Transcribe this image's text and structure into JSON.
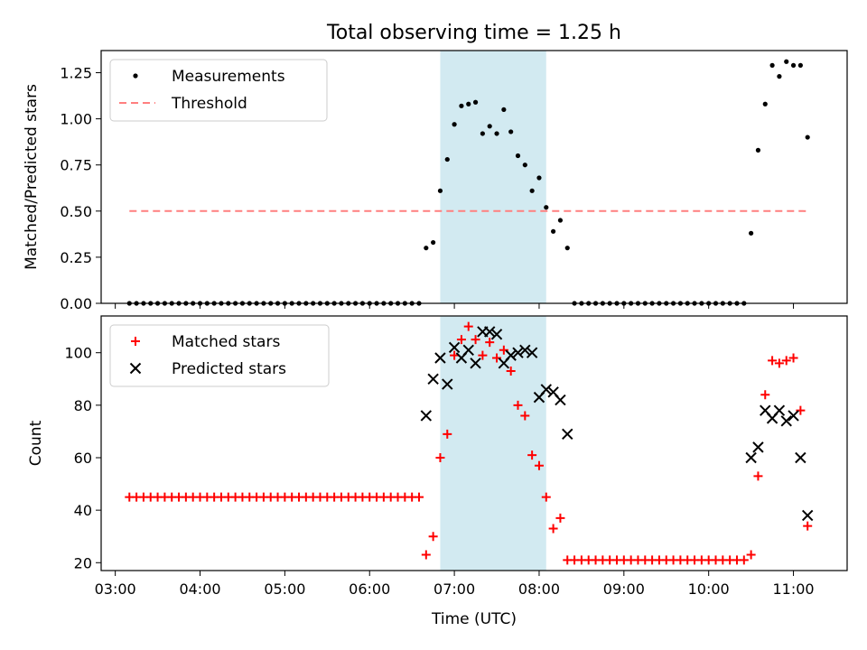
{
  "title": "Total observing time = 1.25 h",
  "xlabel": "Time (UTC)",
  "shaded_span": {
    "start": "06:50",
    "end": "08:05",
    "color": "#add8e6"
  },
  "x_ticks": [
    "03:00",
    "04:00",
    "05:00",
    "06:00",
    "07:00",
    "08:00",
    "09:00",
    "10:00",
    "11:00"
  ],
  "chart_data": [
    {
      "type": "scatter",
      "ylabel": "Matched/Predicted stars",
      "ylim": [
        0,
        1.37
      ],
      "y_ticks": [
        "0.00",
        "0.25",
        "0.50",
        "0.75",
        "1.00",
        "1.25"
      ],
      "legend": {
        "placement": "upper-left",
        "entries": [
          "Measurements",
          "Threshold"
        ]
      },
      "series": [
        {
          "name": "Measurements",
          "marker": "dot",
          "color": "#000000",
          "points": [
            [
              "03:10",
              0
            ],
            [
              "03:15",
              0
            ],
            [
              "03:20",
              0
            ],
            [
              "03:25",
              0
            ],
            [
              "03:30",
              0
            ],
            [
              "03:35",
              0
            ],
            [
              "03:40",
              0
            ],
            [
              "03:45",
              0
            ],
            [
              "03:50",
              0
            ],
            [
              "03:55",
              0
            ],
            [
              "04:00",
              0
            ],
            [
              "04:05",
              0
            ],
            [
              "04:10",
              0
            ],
            [
              "04:15",
              0
            ],
            [
              "04:20",
              0
            ],
            [
              "04:25",
              0
            ],
            [
              "04:30",
              0
            ],
            [
              "04:35",
              0
            ],
            [
              "04:40",
              0
            ],
            [
              "04:45",
              0
            ],
            [
              "04:50",
              0
            ],
            [
              "04:55",
              0
            ],
            [
              "05:00",
              0
            ],
            [
              "05:05",
              0
            ],
            [
              "05:10",
              0
            ],
            [
              "05:15",
              0
            ],
            [
              "05:20",
              0
            ],
            [
              "05:25",
              0
            ],
            [
              "05:30",
              0
            ],
            [
              "05:35",
              0
            ],
            [
              "05:40",
              0
            ],
            [
              "05:45",
              0
            ],
            [
              "05:50",
              0
            ],
            [
              "05:55",
              0
            ],
            [
              "06:00",
              0
            ],
            [
              "06:05",
              0
            ],
            [
              "06:10",
              0
            ],
            [
              "06:15",
              0
            ],
            [
              "06:20",
              0
            ],
            [
              "06:25",
              0
            ],
            [
              "06:30",
              0
            ],
            [
              "06:35",
              0
            ],
            [
              "06:40",
              0.3
            ],
            [
              "06:45",
              0.33
            ],
            [
              "06:50",
              0.61
            ],
            [
              "06:55",
              0.78
            ],
            [
              "07:00",
              0.97
            ],
            [
              "07:05",
              1.07
            ],
            [
              "07:10",
              1.08
            ],
            [
              "07:15",
              1.09
            ],
            [
              "07:20",
              0.92
            ],
            [
              "07:25",
              0.96
            ],
            [
              "07:30",
              0.92
            ],
            [
              "07:35",
              1.05
            ],
            [
              "07:40",
              0.93
            ],
            [
              "07:45",
              0.8
            ],
            [
              "07:50",
              0.75
            ],
            [
              "07:55",
              0.61
            ],
            [
              "08:00",
              0.68
            ],
            [
              "08:05",
              0.52
            ],
            [
              "08:10",
              0.39
            ],
            [
              "08:15",
              0.45
            ],
            [
              "08:20",
              0.3
            ],
            [
              "08:25",
              0
            ],
            [
              "08:30",
              0
            ],
            [
              "08:35",
              0
            ],
            [
              "08:40",
              0
            ],
            [
              "08:45",
              0
            ],
            [
              "08:50",
              0
            ],
            [
              "08:55",
              0
            ],
            [
              "09:00",
              0
            ],
            [
              "09:05",
              0
            ],
            [
              "09:10",
              0
            ],
            [
              "09:15",
              0
            ],
            [
              "09:20",
              0
            ],
            [
              "09:25",
              0
            ],
            [
              "09:30",
              0
            ],
            [
              "09:35",
              0
            ],
            [
              "09:40",
              0
            ],
            [
              "09:45",
              0
            ],
            [
              "09:50",
              0
            ],
            [
              "09:55",
              0
            ],
            [
              "10:00",
              0
            ],
            [
              "10:05",
              0
            ],
            [
              "10:10",
              0
            ],
            [
              "10:15",
              0
            ],
            [
              "10:20",
              0
            ],
            [
              "10:25",
              0
            ],
            [
              "10:30",
              0.38
            ],
            [
              "10:35",
              0.83
            ],
            [
              "10:40",
              1.08
            ],
            [
              "10:45",
              1.29
            ],
            [
              "10:50",
              1.23
            ],
            [
              "10:55",
              1.31
            ],
            [
              "11:00",
              1.29
            ],
            [
              "11:05",
              1.29
            ],
            [
              "11:10",
              0.9
            ]
          ]
        },
        {
          "name": "Threshold",
          "kind": "line",
          "style": "dashed",
          "color": "#ff7f7f",
          "y": 0.5,
          "x_range": [
            "03:10",
            "11:10"
          ]
        }
      ]
    },
    {
      "type": "scatter",
      "ylabel": "Count",
      "ylim": [
        17,
        114
      ],
      "y_ticks": [
        "20",
        "40",
        "60",
        "80",
        "100"
      ],
      "legend": {
        "placement": "upper-left",
        "entries": [
          "Matched stars",
          "Predicted stars"
        ]
      },
      "series": [
        {
          "name": "Matched stars",
          "marker": "plus",
          "color": "#ff0000",
          "points": [
            [
              "03:10",
              45
            ],
            [
              "03:15",
              45
            ],
            [
              "03:20",
              45
            ],
            [
              "03:25",
              45
            ],
            [
              "03:30",
              45
            ],
            [
              "03:35",
              45
            ],
            [
              "03:40",
              45
            ],
            [
              "03:45",
              45
            ],
            [
              "03:50",
              45
            ],
            [
              "03:55",
              45
            ],
            [
              "04:00",
              45
            ],
            [
              "04:05",
              45
            ],
            [
              "04:10",
              45
            ],
            [
              "04:15",
              45
            ],
            [
              "04:20",
              45
            ],
            [
              "04:25",
              45
            ],
            [
              "04:30",
              45
            ],
            [
              "04:35",
              45
            ],
            [
              "04:40",
              45
            ],
            [
              "04:45",
              45
            ],
            [
              "04:50",
              45
            ],
            [
              "04:55",
              45
            ],
            [
              "05:00",
              45
            ],
            [
              "05:05",
              45
            ],
            [
              "05:10",
              45
            ],
            [
              "05:15",
              45
            ],
            [
              "05:20",
              45
            ],
            [
              "05:25",
              45
            ],
            [
              "05:30",
              45
            ],
            [
              "05:35",
              45
            ],
            [
              "05:40",
              45
            ],
            [
              "05:45",
              45
            ],
            [
              "05:50",
              45
            ],
            [
              "05:55",
              45
            ],
            [
              "06:00",
              45
            ],
            [
              "06:05",
              45
            ],
            [
              "06:10",
              45
            ],
            [
              "06:15",
              45
            ],
            [
              "06:20",
              45
            ],
            [
              "06:25",
              45
            ],
            [
              "06:30",
              45
            ],
            [
              "06:35",
              45
            ],
            [
              "06:40",
              23
            ],
            [
              "06:45",
              30
            ],
            [
              "06:50",
              60
            ],
            [
              "06:55",
              69
            ],
            [
              "07:00",
              99
            ],
            [
              "07:05",
              105
            ],
            [
              "07:10",
              110
            ],
            [
              "07:15",
              105
            ],
            [
              "07:20",
              99
            ],
            [
              "07:25",
              104
            ],
            [
              "07:30",
              98
            ],
            [
              "07:35",
              101
            ],
            [
              "07:40",
              93
            ],
            [
              "07:45",
              80
            ],
            [
              "07:50",
              76
            ],
            [
              "07:55",
              61
            ],
            [
              "08:00",
              57
            ],
            [
              "08:05",
              45
            ],
            [
              "08:10",
              33
            ],
            [
              "08:15",
              37
            ],
            [
              "08:20",
              21
            ],
            [
              "08:25",
              21
            ],
            [
              "08:30",
              21
            ],
            [
              "08:35",
              21
            ],
            [
              "08:40",
              21
            ],
            [
              "08:45",
              21
            ],
            [
              "08:50",
              21
            ],
            [
              "08:55",
              21
            ],
            [
              "09:00",
              21
            ],
            [
              "09:05",
              21
            ],
            [
              "09:10",
              21
            ],
            [
              "09:15",
              21
            ],
            [
              "09:20",
              21
            ],
            [
              "09:25",
              21
            ],
            [
              "09:30",
              21
            ],
            [
              "09:35",
              21
            ],
            [
              "09:40",
              21
            ],
            [
              "09:45",
              21
            ],
            [
              "09:50",
              21
            ],
            [
              "09:55",
              21
            ],
            [
              "10:00",
              21
            ],
            [
              "10:05",
              21
            ],
            [
              "10:10",
              21
            ],
            [
              "10:15",
              21
            ],
            [
              "10:20",
              21
            ],
            [
              "10:25",
              21
            ],
            [
              "10:30",
              23
            ],
            [
              "10:35",
              53
            ],
            [
              "10:40",
              84
            ],
            [
              "10:45",
              97
            ],
            [
              "10:50",
              96
            ],
            [
              "10:55",
              97
            ],
            [
              "11:00",
              98
            ],
            [
              "11:05",
              78
            ],
            [
              "11:10",
              34
            ]
          ]
        },
        {
          "name": "Predicted stars",
          "marker": "x",
          "color": "#000000",
          "points": [
            [
              "06:40",
              76
            ],
            [
              "06:45",
              90
            ],
            [
              "06:50",
              98
            ],
            [
              "06:55",
              88
            ],
            [
              "07:00",
              102
            ],
            [
              "07:05",
              98
            ],
            [
              "07:10",
              101
            ],
            [
              "07:15",
              96
            ],
            [
              "07:20",
              108
            ],
            [
              "07:25",
              108
            ],
            [
              "07:30",
              107
            ],
            [
              "07:35",
              96
            ],
            [
              "07:40",
              99
            ],
            [
              "07:45",
              100
            ],
            [
              "07:50",
              101
            ],
            [
              "07:55",
              100
            ],
            [
              "08:00",
              83
            ],
            [
              "08:05",
              86
            ],
            [
              "08:10",
              85
            ],
            [
              "08:15",
              82
            ],
            [
              "08:20",
              69
            ],
            [
              "10:30",
              60
            ],
            [
              "10:35",
              64
            ],
            [
              "10:40",
              78
            ],
            [
              "10:45",
              75
            ],
            [
              "10:50",
              78
            ],
            [
              "10:55",
              74
            ],
            [
              "11:00",
              76
            ],
            [
              "11:05",
              60
            ],
            [
              "11:10",
              38
            ]
          ]
        }
      ]
    }
  ]
}
